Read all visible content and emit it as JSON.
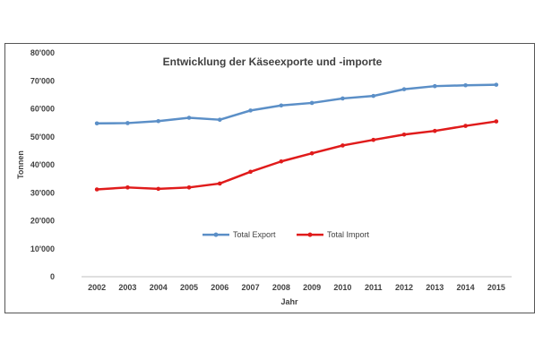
{
  "chart_data": {
    "type": "line",
    "title": "Entwicklung der Käseexporte und -importe",
    "xlabel": "Jahr",
    "ylabel": "Tonnen",
    "x": [
      "2002",
      "2003",
      "2004",
      "2005",
      "2006",
      "2007",
      "2008",
      "2009",
      "2010",
      "2011",
      "2012",
      "2013",
      "2014",
      "2015"
    ],
    "ylim": [
      0,
      80000
    ],
    "yticks": [
      0,
      10000,
      20000,
      30000,
      40000,
      50000,
      60000,
      70000,
      80000
    ],
    "ytick_labels": [
      "0",
      "10'000",
      "20'000",
      "30'000",
      "40'000",
      "50'000",
      "60'000",
      "70'000",
      "80'000"
    ],
    "grid": false,
    "legend_position": "center",
    "series": [
      {
        "name": "Total Export",
        "color": "#5b8fc7",
        "values": [
          54800,
          54900,
          55600,
          56800,
          56100,
          59400,
          61200,
          62100,
          63700,
          64600,
          67000,
          68100,
          68400,
          68600
        ]
      },
      {
        "name": "Total Import",
        "color": "#e01b1b",
        "values": [
          31200,
          31900,
          31400,
          31900,
          33300,
          37500,
          41200,
          44100,
          46900,
          48900,
          50800,
          52100,
          53900,
          55500
        ]
      }
    ]
  }
}
